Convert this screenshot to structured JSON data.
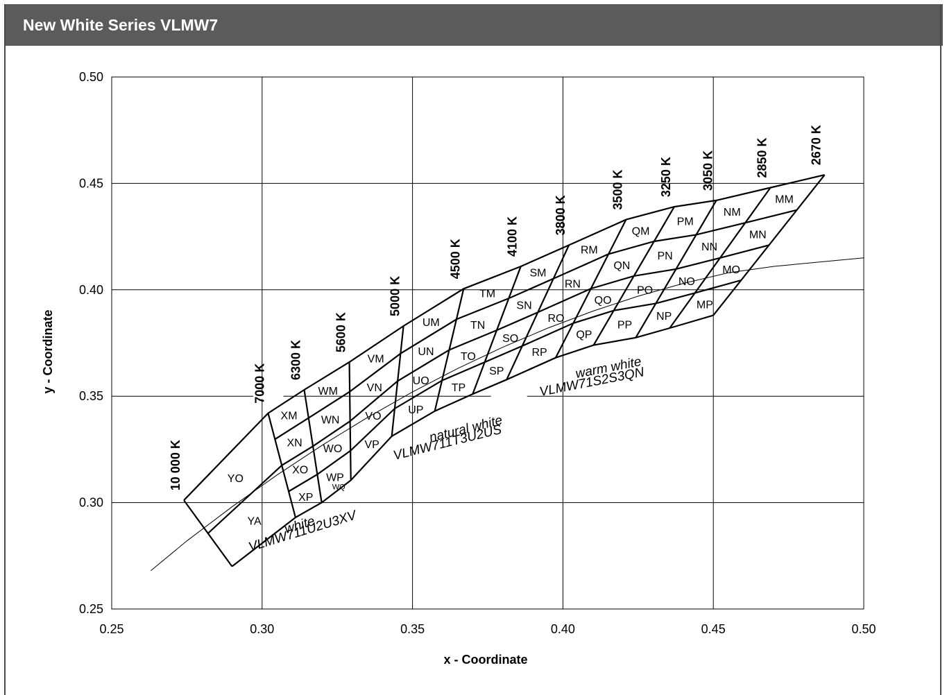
{
  "header": {
    "title": "New White Series VLMW7"
  },
  "chart_data": {
    "type": "line",
    "title": "New White Series VLMW7",
    "xlabel": "x - Coordinate",
    "ylabel": "y - Coordinate",
    "xlim": [
      0.25,
      0.5
    ],
    "ylim": [
      0.25,
      0.5
    ],
    "xticks": [
      "0.25",
      "0.30",
      "0.35",
      "0.40",
      "0.45",
      "0.50"
    ],
    "yticks": [
      "0.25",
      "0.30",
      "0.35",
      "0.40",
      "0.45",
      "0.50"
    ],
    "grid": true,
    "isotherms": [
      {
        "label": "10 000 K",
        "top": [
          0.274,
          0.3011
        ],
        "bottom": [
          0.29,
          0.27
        ]
      },
      {
        "label": "7000 K",
        "top": [
          0.302,
          0.342
        ],
        "bottom": [
          0.3111,
          0.293
        ]
      },
      {
        "label": "6300 K",
        "top": [
          0.314,
          0.353
        ],
        "bottom": [
          0.3198,
          0.3
        ]
      },
      {
        "label": "5600 K",
        "top": [
          0.329,
          0.366
        ],
        "bottom": [
          0.3295,
          0.3105
        ]
      },
      {
        "label": "5000 K",
        "top": [
          0.347,
          0.383
        ],
        "bottom": [
          0.3431,
          0.3312
        ]
      },
      {
        "label": "4500 K",
        "top": [
          0.367,
          0.4005
        ],
        "bottom": [
          0.3574,
          0.343
        ]
      },
      {
        "label": "4100 K",
        "top": [
          0.386,
          0.411
        ],
        "bottom": [
          0.37,
          0.351
        ]
      },
      {
        "label": "3800 K",
        "top": [
          0.402,
          0.421
        ],
        "bottom": [
          0.3813,
          0.3578
        ]
      },
      {
        "label": "3500 K",
        "top": [
          0.421,
          0.433
        ],
        "bottom": [
          0.3976,
          0.3681
        ]
      },
      {
        "label": "3250 K",
        "top": [
          0.437,
          0.439
        ],
        "bottom": [
          0.4102,
          0.374
        ]
      },
      {
        "label": "3050 K",
        "top": [
          0.451,
          0.442
        ],
        "bottom": [
          0.4242,
          0.3775
        ]
      },
      {
        "label": "2850 K",
        "top": [
          0.469,
          0.448
        ],
        "bottom": [
          0.4355,
          0.382
        ]
      },
      {
        "label": "2670 K",
        "top": [
          0.487,
          0.454
        ],
        "bottom": [
          0.45,
          0.388
        ]
      }
    ],
    "bins": [
      "YO",
      "YA",
      "XM",
      "XN",
      "XO",
      "XP",
      "WM",
      "WN",
      "WO",
      "WP",
      "WQ",
      "VM",
      "VN",
      "VO",
      "VP",
      "UM",
      "UN",
      "UO",
      "UP",
      "TM",
      "TN",
      "TO",
      "TP",
      "SM",
      "SN",
      "SO",
      "SP",
      "RM",
      "RN",
      "RO",
      "RP",
      "QM",
      "QN",
      "QO",
      "QP",
      "PM",
      "PN",
      "PO",
      "PP",
      "NM",
      "NN",
      "NO",
      "NP",
      "MM",
      "MN",
      "MO",
      "MP"
    ],
    "groups": [
      {
        "name": "white",
        "part": "VLMW711U2U3XV"
      },
      {
        "name": "natural white",
        "part": "VLMW711T3U2US"
      },
      {
        "name": "warm white",
        "part": "VLMW71S2S3QN"
      }
    ],
    "curve": [
      [
        0.263,
        0.268
      ],
      [
        0.275,
        0.282
      ],
      [
        0.29,
        0.298
      ],
      [
        0.305,
        0.313
      ],
      [
        0.32,
        0.327
      ],
      [
        0.335,
        0.34
      ],
      [
        0.35,
        0.352
      ],
      [
        0.365,
        0.363
      ],
      [
        0.38,
        0.373
      ],
      [
        0.395,
        0.382
      ],
      [
        0.41,
        0.39
      ],
      [
        0.425,
        0.397
      ],
      [
        0.44,
        0.403
      ],
      [
        0.455,
        0.408
      ],
      [
        0.47,
        0.411
      ],
      [
        0.485,
        0.413
      ],
      [
        0.5,
        0.415
      ]
    ]
  }
}
